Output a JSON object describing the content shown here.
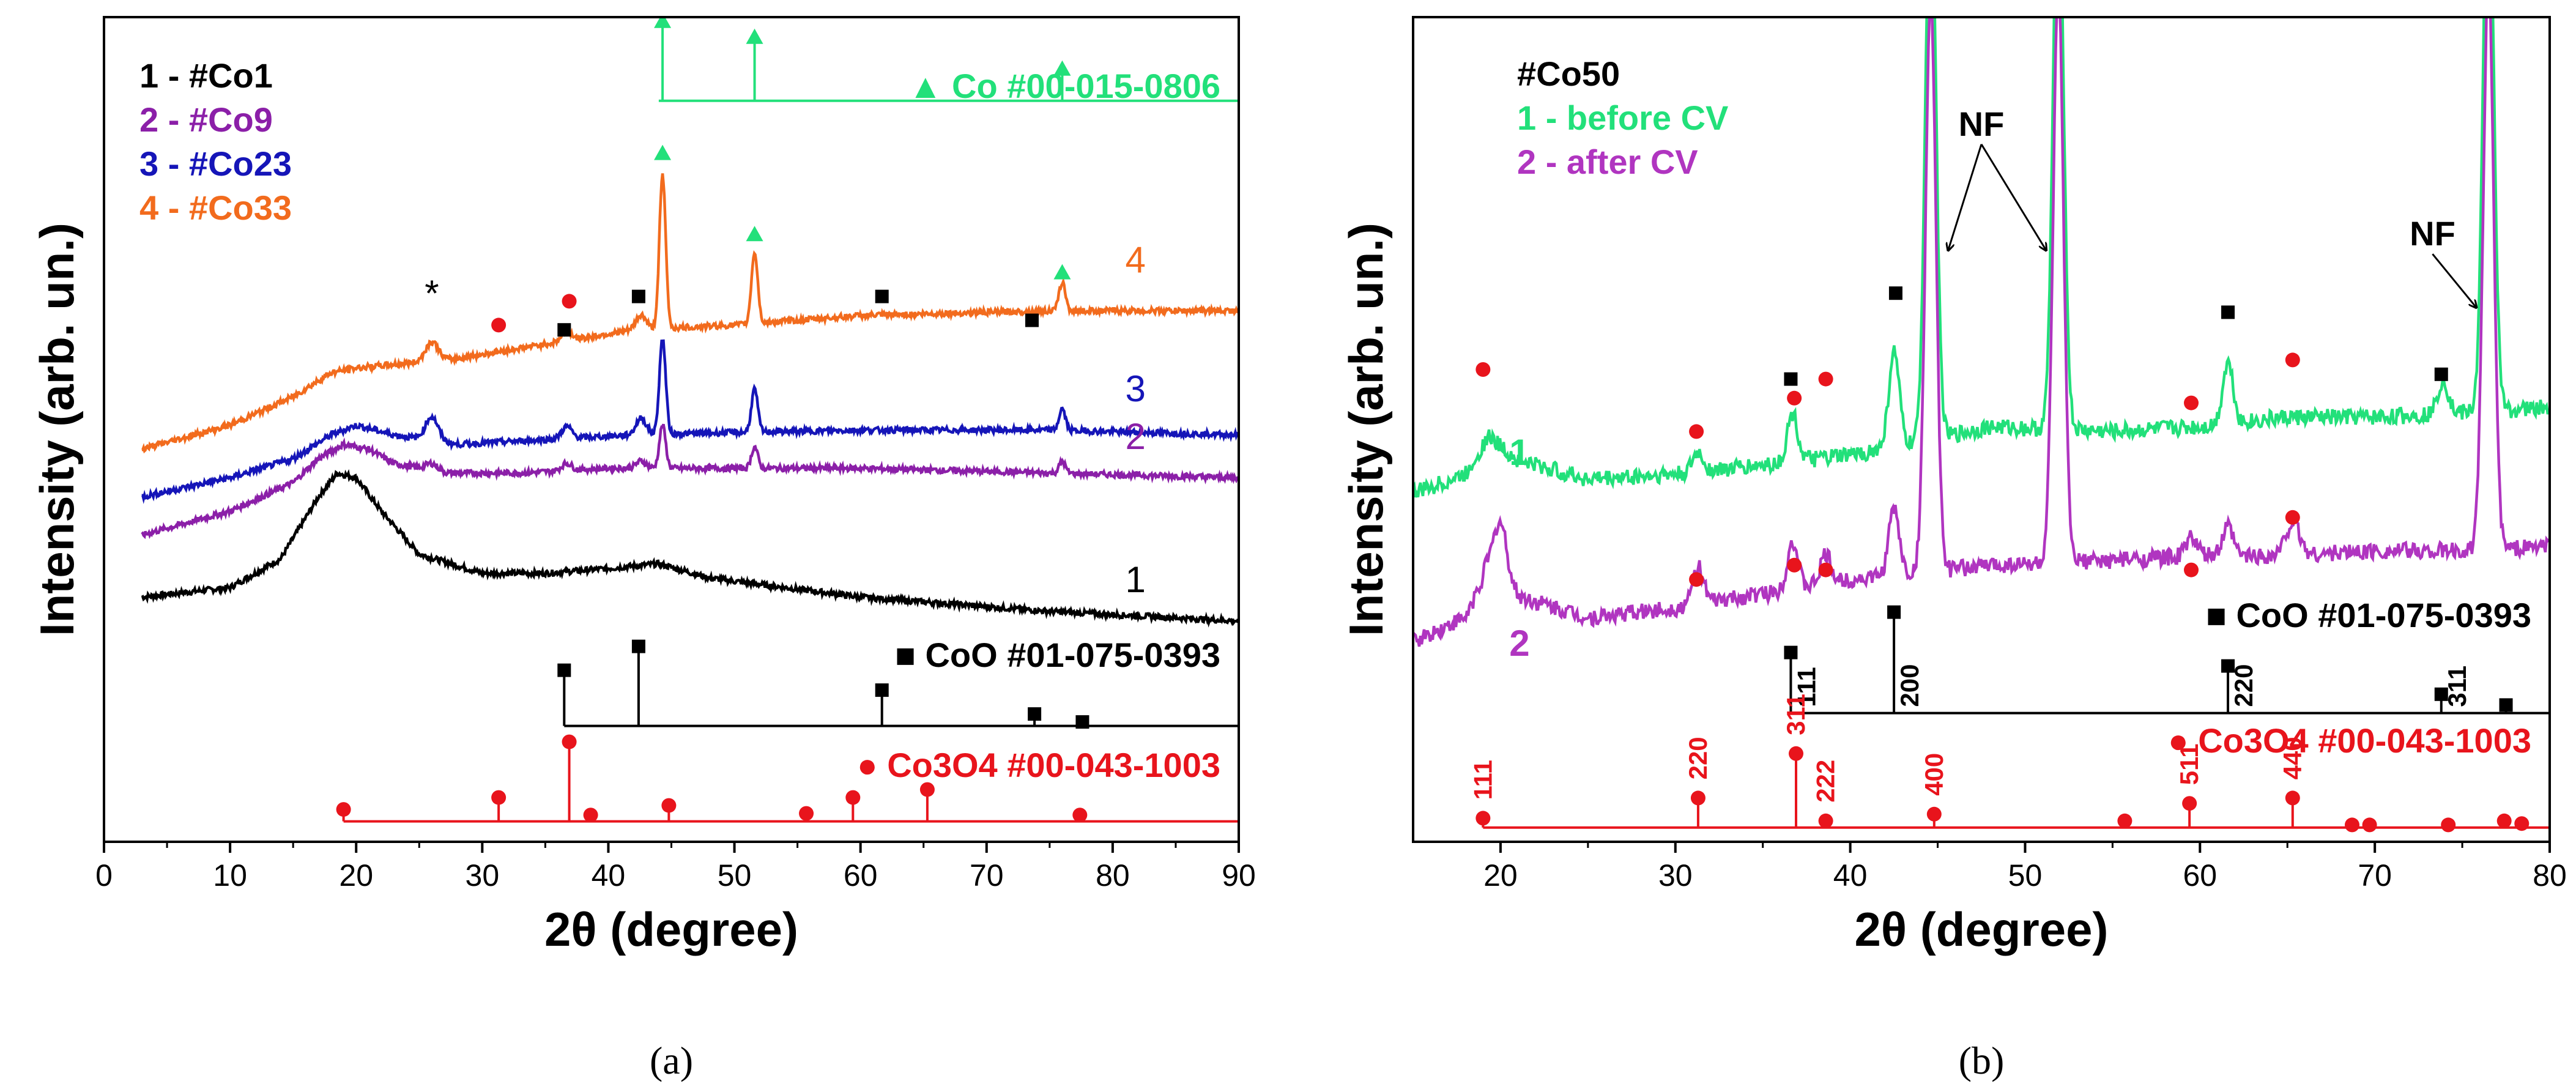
{
  "chart_data": [
    {
      "panel_caption": "(a)",
      "type": "line",
      "xlabel": "2θ (degree)",
      "ylabel": "Intensity (arb. un.)",
      "xlim": [
        0,
        90
      ],
      "xticks": [
        0,
        10,
        20,
        30,
        40,
        50,
        60,
        70,
        80,
        90
      ],
      "y_ticks_shown": false,
      "grid": false,
      "legend_placement": "top-left",
      "legend": [
        {
          "label": "1 - #Co1",
          "color": "#000000"
        },
        {
          "label": "2 - #Co9",
          "color": "#8B1FA8"
        },
        {
          "label": "3 - #Co23",
          "color": "#1515B8"
        },
        {
          "label": "4 - #Co33",
          "color": "#F26B1D"
        }
      ],
      "series": [
        {
          "name": "1",
          "color": "#000000",
          "baseline": [
            [
              3,
              0.05
            ],
            [
              10,
              0.07
            ],
            [
              14,
              0.13
            ],
            [
              17,
              0.26
            ],
            [
              18.5,
              0.31
            ],
            [
              20,
              0.3
            ],
            [
              22,
              0.23
            ],
            [
              25,
              0.14
            ],
            [
              30,
              0.1
            ],
            [
              35,
              0.1
            ],
            [
              40,
              0.11
            ],
            [
              44,
              0.12
            ],
            [
              48,
              0.09
            ],
            [
              60,
              0.05
            ],
            [
              75,
              0.02
            ],
            [
              90,
              0.0
            ]
          ],
          "peaks": []
        },
        {
          "name": "2",
          "color": "#8B1FA8",
          "baseline": [
            [
              3,
              0.18
            ],
            [
              10,
              0.23
            ],
            [
              15,
              0.29
            ],
            [
              17,
              0.34
            ],
            [
              19,
              0.37
            ],
            [
              21,
              0.36
            ],
            [
              23,
              0.33
            ],
            [
              27,
              0.31
            ],
            [
              33,
              0.31
            ],
            [
              40,
              0.32
            ],
            [
              46,
              0.32
            ],
            [
              60,
              0.32
            ],
            [
              75,
              0.31
            ],
            [
              90,
              0.3
            ]
          ],
          "peaks": [
            [
              26,
              0.015,
              0.5
            ],
            [
              36.7,
              0.015,
              0.4
            ],
            [
              42.6,
              0.015,
              0.4
            ],
            [
              44.3,
              0.09,
              0.25
            ],
            [
              51.6,
              0.045,
              0.25
            ],
            [
              76,
              0.025,
              0.25
            ]
          ]
        },
        {
          "name": "3",
          "color": "#1515B8",
          "baseline": [
            [
              3,
              0.26
            ],
            [
              10,
              0.3
            ],
            [
              15,
              0.34
            ],
            [
              18,
              0.39
            ],
            [
              20,
              0.41
            ],
            [
              23,
              0.39
            ],
            [
              28,
              0.37
            ],
            [
              35,
              0.38
            ],
            [
              42,
              0.39
            ],
            [
              50,
              0.395
            ],
            [
              60,
              0.4
            ],
            [
              75,
              0.4
            ],
            [
              90,
              0.39
            ]
          ],
          "peaks": [
            [
              26,
              0.05,
              0.5
            ],
            [
              36.7,
              0.025,
              0.4
            ],
            [
              42.6,
              0.035,
              0.4
            ],
            [
              44.3,
              0.2,
              0.25
            ],
            [
              51.6,
              0.09,
              0.25
            ],
            [
              76,
              0.045,
              0.25
            ]
          ]
        },
        {
          "name": "4",
          "color": "#F26B1D",
          "baseline": [
            [
              3,
              0.36
            ],
            [
              10,
              0.41
            ],
            [
              15,
              0.47
            ],
            [
              18,
              0.52
            ],
            [
              20,
              0.53
            ],
            [
              24,
              0.54
            ],
            [
              28,
              0.55
            ],
            [
              35,
              0.58
            ],
            [
              42,
              0.61
            ],
            [
              50,
              0.62
            ],
            [
              60,
              0.64
            ],
            [
              75,
              0.65
            ],
            [
              90,
              0.65
            ]
          ],
          "peaks": [
            [
              26,
              0.04,
              0.5
            ],
            [
              36.7,
              0.02,
              0.4
            ],
            [
              42.6,
              0.03,
              0.4
            ],
            [
              44.3,
              0.32,
              0.25
            ],
            [
              51.6,
              0.15,
              0.25
            ],
            [
              76,
              0.06,
              0.25
            ]
          ]
        }
      ],
      "curve_labels": [
        {
          "text": "1",
          "x": 81,
          "y": 0.06,
          "color": "#000000"
        },
        {
          "text": "2",
          "x": 81,
          "y": 0.36,
          "color": "#8B1FA8"
        },
        {
          "text": "3",
          "x": 81,
          "y": 0.46,
          "color": "#1515B8"
        },
        {
          "text": "4",
          "x": 81,
          "y": 0.73,
          "color": "#F26B1D"
        }
      ],
      "star_marker": {
        "text": "*",
        "x": 26,
        "y": 0.66
      },
      "co3o4_markers_on_curve": [
        [
          31.3,
          0.62
        ],
        [
          36.9,
          0.67
        ]
      ],
      "coo_markers_on_curve": [
        [
          36.5,
          0.61
        ],
        [
          42.4,
          0.68
        ],
        [
          61.7,
          0.68
        ],
        [
          73.6,
          0.63
        ]
      ],
      "co_markers_on_curve": [
        [
          44.3,
          0.98
        ],
        [
          51.6,
          0.81
        ],
        [
          76,
          0.73
        ]
      ],
      "reference_patterns": [
        {
          "name": "Co #00-015-0806",
          "color": "#22E07A",
          "marker": "triangle",
          "baseline": 1.09,
          "x_range": [
            44,
            90
          ],
          "sticks": [
            [
              44.3,
              1.0
            ],
            [
              51.6,
              0.8
            ],
            [
              76,
              0.4
            ]
          ]
        },
        {
          "name": "CoO #01-075-0393",
          "color": "#000000",
          "marker": "square",
          "baseline": -0.22,
          "x_range": [
            36.5,
            90
          ],
          "sticks": [
            [
              36.5,
              0.7
            ],
            [
              42.4,
              1.0
            ],
            [
              61.7,
              0.45
            ],
            [
              73.8,
              0.15
            ],
            [
              77.6,
              0.05
            ]
          ]
        },
        {
          "name": "Co3O4 #00-043-1003",
          "color": "#E8141C",
          "marker": "circle",
          "baseline": -0.42,
          "x_range": [
            19,
            90
          ],
          "sticks": [
            [
              19,
              0.15
            ],
            [
              31.3,
              0.3
            ],
            [
              36.9,
              1.0
            ],
            [
              38.6,
              0.08
            ],
            [
              44.8,
              0.2
            ],
            [
              55.7,
              0.1
            ],
            [
              59.4,
              0.3
            ],
            [
              65.3,
              0.4
            ],
            [
              77.4,
              0.08
            ]
          ]
        }
      ]
    },
    {
      "panel_caption": "(b)",
      "type": "line",
      "xlabel": "2θ (degree)",
      "ylabel": "Intensity (arb. un.)",
      "xlim": [
        15,
        80
      ],
      "xticks": [
        20,
        30,
        40,
        50,
        60,
        70,
        80
      ],
      "tick_label_text": [
        "20",
        "30",
        "40",
        "50",
        "60",
        "70",
        "80"
      ],
      "y_ticks_shown": false,
      "grid": false,
      "legend_placement": "top-left",
      "legend_title": "#Co50",
      "legend": [
        {
          "label": "1 - before CV",
          "color": "#22E07A"
        },
        {
          "label": "2 - after CV",
          "color": "#B035C0"
        }
      ],
      "series": [
        {
          "name": "1",
          "color": "#22E07A",
          "baseline": [
            [
              15,
              0.44
            ],
            [
              18,
              0.48
            ],
            [
              19.3,
              0.56
            ],
            [
              21,
              0.51
            ],
            [
              25,
              0.47
            ],
            [
              30,
              0.48
            ],
            [
              35,
              0.5
            ],
            [
              40,
              0.52
            ],
            [
              43,
              0.54
            ],
            [
              48,
              0.58
            ],
            [
              55,
              0.57
            ],
            [
              60,
              0.58
            ],
            [
              65,
              0.6
            ],
            [
              70,
              0.6
            ],
            [
              75,
              0.61
            ],
            [
              80,
              0.62
            ]
          ],
          "peaks": [
            [
              31.3,
              0.04,
              0.3
            ],
            [
              36.7,
              0.1,
              0.3
            ],
            [
              42.5,
              0.2,
              0.3
            ],
            [
              44.6,
              1.2,
              0.3
            ],
            [
              51.9,
              1.2,
              0.3
            ],
            [
              61.6,
              0.13,
              0.3
            ],
            [
              73.9,
              0.07,
              0.3
            ],
            [
              76.5,
              1.2,
              0.3
            ]
          ]
        },
        {
          "name": "2",
          "color": "#B035C0",
          "baseline": [
            [
              15,
              0.13
            ],
            [
              18,
              0.18
            ],
            [
              19.2,
              0.28
            ],
            [
              20.5,
              0.23
            ],
            [
              25,
              0.18
            ],
            [
              30,
              0.2
            ],
            [
              35,
              0.23
            ],
            [
              40,
              0.26
            ],
            [
              43,
              0.27
            ],
            [
              48,
              0.29
            ],
            [
              55,
              0.3
            ],
            [
              60,
              0.31
            ],
            [
              65,
              0.31
            ],
            [
              70,
              0.32
            ],
            [
              75,
              0.32
            ],
            [
              80,
              0.33
            ]
          ],
          "peaks": [
            [
              20,
              0.13,
              0.4
            ],
            [
              31.3,
              0.08,
              0.3
            ],
            [
              36.7,
              0.1,
              0.3
            ],
            [
              38.6,
              0.06,
              0.3
            ],
            [
              42.5,
              0.14,
              0.3
            ],
            [
              44.6,
              1.2,
              0.3
            ],
            [
              51.9,
              1.2,
              0.3
            ],
            [
              59.5,
              0.04,
              0.3
            ],
            [
              61.6,
              0.06,
              0.3
            ],
            [
              65.3,
              0.07,
              0.4
            ],
            [
              76.5,
              1.2,
              0.3
            ]
          ]
        }
      ],
      "curve_labels": [
        {
          "text": "1",
          "x": 20.5,
          "y": 0.5,
          "color": "#22E07A"
        },
        {
          "text": "2",
          "x": 20.5,
          "y": 0.1,
          "color": "#B035C0"
        }
      ],
      "nf_annotations": [
        {
          "text": "NF",
          "x": 47.5,
          "y": 1.19,
          "arrows_to": [
            [
              45.6,
              0.95
            ],
            [
              51.2,
              0.95
            ]
          ]
        },
        {
          "text": "NF",
          "x": 73.3,
          "y": 0.96,
          "arrows_to": [
            [
              75.8,
              0.83
            ]
          ]
        }
      ],
      "co3o4_markers_on_curve": [
        [
          19,
          0.7
        ],
        [
          31.2,
          0.57
        ],
        [
          36.8,
          0.64
        ],
        [
          38.6,
          0.68
        ],
        [
          59.5,
          0.63
        ],
        [
          65.3,
          0.72
        ],
        [
          31.2,
          0.26
        ],
        [
          36.8,
          0.29
        ],
        [
          38.6,
          0.28
        ],
        [
          59.5,
          0.28
        ],
        [
          65.3,
          0.39
        ]
      ],
      "coo_markers_on_curve": [
        [
          36.6,
          0.68
        ],
        [
          42.6,
          0.86
        ],
        [
          61.6,
          0.82
        ],
        [
          73.8,
          0.69
        ]
      ],
      "reference_patterns": [
        {
          "name": "CoO #01-075-0393",
          "color": "#000000",
          "marker": "square",
          "baseline": -0.02,
          "x_range": [
            36.6,
            80
          ],
          "sticks": [
            [
              36.6,
              0.45
            ],
            [
              42.5,
              0.75
            ],
            [
              61.6,
              0.35
            ],
            [
              73.8,
              0.14
            ],
            [
              77.5,
              0.06
            ]
          ],
          "hkl": [
            [
              36.6,
              "111"
            ],
            [
              42.5,
              "200"
            ],
            [
              61.6,
              "220"
            ],
            [
              73.8,
              "311"
            ]
          ]
        },
        {
          "name": "Co3O4 #00-043-1003",
          "color": "#E8141C",
          "marker": "circle",
          "baseline": -0.26,
          "x_range": [
            19,
            80
          ],
          "sticks": [
            [
              19,
              0.07
            ],
            [
              31.3,
              0.22
            ],
            [
              36.9,
              0.55
            ],
            [
              38.6,
              0.05
            ],
            [
              44.8,
              0.1
            ],
            [
              55.7,
              0.05
            ],
            [
              59.4,
              0.18
            ],
            [
              65.3,
              0.22
            ],
            [
              68.7,
              0.02
            ],
            [
              69.7,
              0.02
            ],
            [
              74.2,
              0.02
            ],
            [
              77.4,
              0.05
            ],
            [
              78.4,
              0.03
            ]
          ],
          "hkl": [
            [
              19,
              "111"
            ],
            [
              31.3,
              "220"
            ],
            [
              36.9,
              "311"
            ],
            [
              38.6,
              "222"
            ],
            [
              44.8,
              "400"
            ],
            [
              59.4,
              "511"
            ],
            [
              65.3,
              "440"
            ]
          ]
        }
      ]
    }
  ]
}
